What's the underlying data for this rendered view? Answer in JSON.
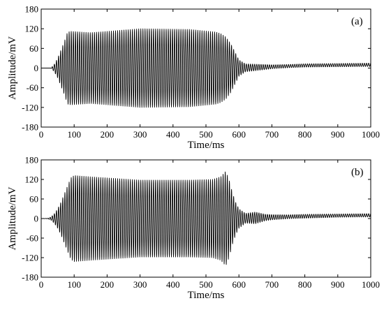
{
  "chart_data": [
    {
      "type": "line",
      "panel_label": "(a)",
      "xlabel": "Time/ms",
      "ylabel": "Amplitude/mV",
      "xlim": [
        0,
        1000
      ],
      "ylim": [
        -180,
        180
      ],
      "x_ticks": [
        0,
        100,
        200,
        300,
        400,
        500,
        600,
        700,
        800,
        900,
        1000
      ],
      "y_ticks": [
        -180,
        -120,
        -60,
        0,
        60,
        120,
        180
      ],
      "x_tick_labels": [
        "0",
        "100",
        "200",
        "300",
        "400",
        "500",
        "600",
        "700",
        "800",
        "900",
        "1000"
      ],
      "y_tick_labels": [
        "-180",
        "-120",
        "-60",
        "0",
        "60",
        "120",
        "180"
      ],
      "grid": false,
      "series": [
        {
          "color": "#000000",
          "oscillation_period_ms": 6.4,
          "offset_mV": 0,
          "envelope": {
            "x": [
              0,
              30,
              40,
              50,
              60,
              70,
              80,
              90,
              150,
              300,
              450,
              530,
              545,
              560,
              575,
              590,
              600,
              620,
              650,
              700,
              750,
              800,
              900,
              1000
            ],
            "y": [
              0,
              0,
              12,
              30,
              55,
              80,
              110,
              112,
              108,
              120,
              118,
              110,
              105,
              95,
              75,
              45,
              25,
              12,
              10,
              6,
              5,
              5,
              5,
              5
            ]
          },
          "baseline": {
            "x": [
              0,
              600,
              650,
              700,
              750,
              800,
              900,
              1000
            ],
            "y": [
              0,
              0,
              2,
              4,
              6,
              8,
              9,
              10
            ]
          }
        }
      ]
    },
    {
      "type": "line",
      "panel_label": "(b)",
      "xlabel": "Time/ms",
      "ylabel": "Amplitude/mV",
      "xlim": [
        0,
        1000
      ],
      "ylim": [
        -180,
        180
      ],
      "x_ticks": [
        0,
        100,
        200,
        300,
        400,
        500,
        600,
        700,
        800,
        900,
        1000
      ],
      "y_ticks": [
        -180,
        -120,
        -60,
        0,
        60,
        120,
        180
      ],
      "x_tick_labels": [
        "0",
        "100",
        "200",
        "300",
        "400",
        "500",
        "600",
        "700",
        "800",
        "900",
        "1000"
      ],
      "y_tick_labels": [
        "-180",
        "-120",
        "-60",
        "0",
        "60",
        "120",
        "180"
      ],
      "grid": false,
      "series": [
        {
          "color": "#000000",
          "oscillation_period_ms": 6.4,
          "offset_mV": 0,
          "envelope": {
            "x": [
              0,
              20,
              30,
              40,
              50,
              60,
              70,
              80,
              90,
              100,
              150,
              300,
              450,
              520,
              545,
              560,
              570,
              580,
              590,
              600,
              620,
              650,
              680,
              700,
              750,
              800,
              900,
              1000
            ],
            "y": [
              0,
              1,
              5,
              15,
              30,
              50,
              75,
              100,
              125,
              132,
              128,
              118,
              118,
              120,
              128,
              145,
              120,
              80,
              50,
              30,
              15,
              18,
              10,
              8,
              6,
              6,
              5,
              5
            ]
          },
          "baseline": {
            "x": [
              0,
              600,
              700,
              800,
              900,
              1000
            ],
            "y": [
              0,
              0,
              4,
              7,
              9,
              10
            ]
          }
        }
      ]
    }
  ]
}
